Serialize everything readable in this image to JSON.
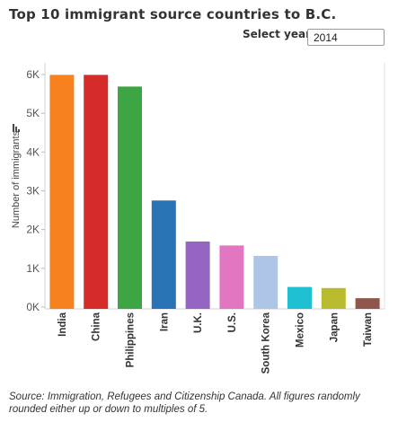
{
  "title": "Top 10 immigrant source countries to B.C.",
  "year_filter": {
    "label": "Select year",
    "selected": "2014"
  },
  "source_note": "Source: Immigration, Refugees and Citizenship Canada.  All figures randomly rounded either up or down to multiples of 5.",
  "chart_data": {
    "type": "bar",
    "title": "Top 10 immigrant source countries to B.C.",
    "xlabel": "",
    "ylabel": "Number of immigrants",
    "ylim": [
      0,
      6000
    ],
    "yticks": [
      0,
      1000,
      2000,
      3000,
      4000,
      5000,
      6000
    ],
    "ytick_labels": [
      "0K",
      "1K",
      "2K",
      "3K",
      "4K",
      "5K",
      "6K"
    ],
    "categories": [
      "India",
      "China",
      "Philippines",
      "Iran",
      "U.K.",
      "U.S.",
      "South Korea",
      "Mexico",
      "Japan",
      "Taiwan"
    ],
    "values": [
      5990,
      5990,
      5690,
      2750,
      1690,
      1590,
      1320,
      520,
      490,
      230
    ],
    "colors": [
      "#f7801f",
      "#d62b2b",
      "#3da543",
      "#2a72b6",
      "#9466c1",
      "#e376c1",
      "#aec5e6",
      "#1dbfd1",
      "#b9bb2f",
      "#8f574b"
    ],
    "grid": false
  }
}
